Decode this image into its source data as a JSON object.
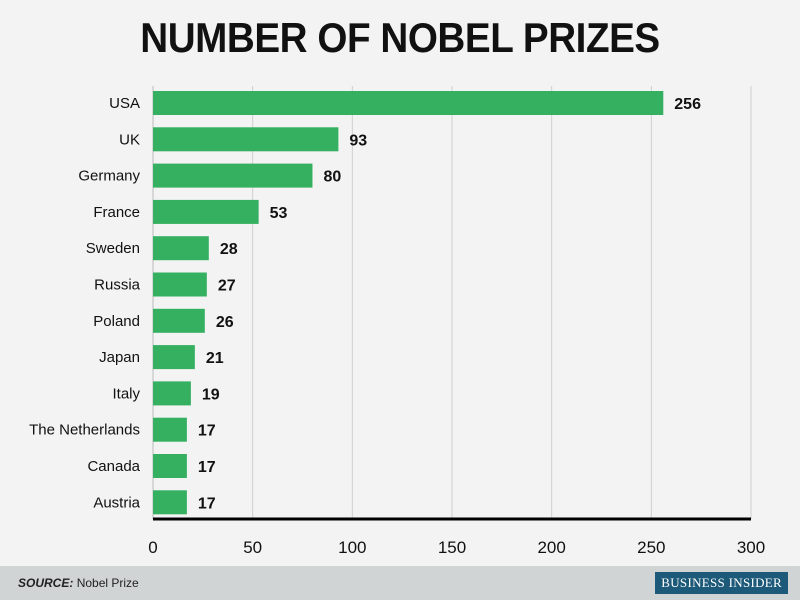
{
  "chart_data": {
    "type": "bar",
    "orientation": "horizontal",
    "title": "NUMBER OF NOBEL PRIZES",
    "categories": [
      "USA",
      "UK",
      "Germany",
      "France",
      "Sweden",
      "Russia",
      "Poland",
      "Japan",
      "Italy",
      "The Netherlands",
      "Canada",
      "Austria"
    ],
    "values": [
      256,
      93,
      80,
      53,
      28,
      27,
      26,
      21,
      19,
      17,
      17,
      17
    ],
    "xlim": [
      0,
      300
    ],
    "xticks": [
      0,
      50,
      100,
      150,
      200,
      250,
      300
    ],
    "grid": true,
    "bar_color": "#34b060"
  },
  "footer": {
    "source_label": "SOURCE:",
    "source_text": "Nobel Prize",
    "logo": "BUSINESS INSIDER"
  }
}
